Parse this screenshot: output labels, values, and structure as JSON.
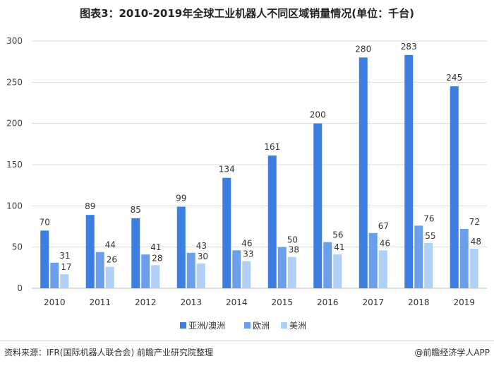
{
  "chart_data": {
    "type": "bar",
    "title": "图表3：2010-2019年全球工业机器人不同区域销量情况(单位：千台)",
    "categories": [
      "2010",
      "2011",
      "2012",
      "2013",
      "2014",
      "2015",
      "2016",
      "2017",
      "2018",
      "2019"
    ],
    "series": [
      {
        "name": "亚洲/澳洲",
        "color": "#3d7fe0",
        "values": [
          70,
          89,
          85,
          99,
          134,
          161,
          200,
          280,
          283,
          245
        ]
      },
      {
        "name": "欧洲",
        "color": "#6b9fec",
        "values": [
          31,
          44,
          41,
          43,
          46,
          50,
          56,
          67,
          76,
          72
        ]
      },
      {
        "name": "美洲",
        "color": "#b0d0f8",
        "values": [
          17,
          26,
          28,
          30,
          33,
          38,
          41,
          46,
          55,
          48
        ]
      }
    ],
    "ylim": [
      0,
      300
    ],
    "yticks": [
      0,
      50,
      100,
      150,
      200,
      250,
      300
    ],
    "grid": true,
    "legend": "bottom",
    "data_labels": true
  },
  "footer": {
    "source": "资料来源：IFR(国际机器人联合会) 前瞻产业研究院整理",
    "credit": "@前瞻经济学人APP"
  }
}
